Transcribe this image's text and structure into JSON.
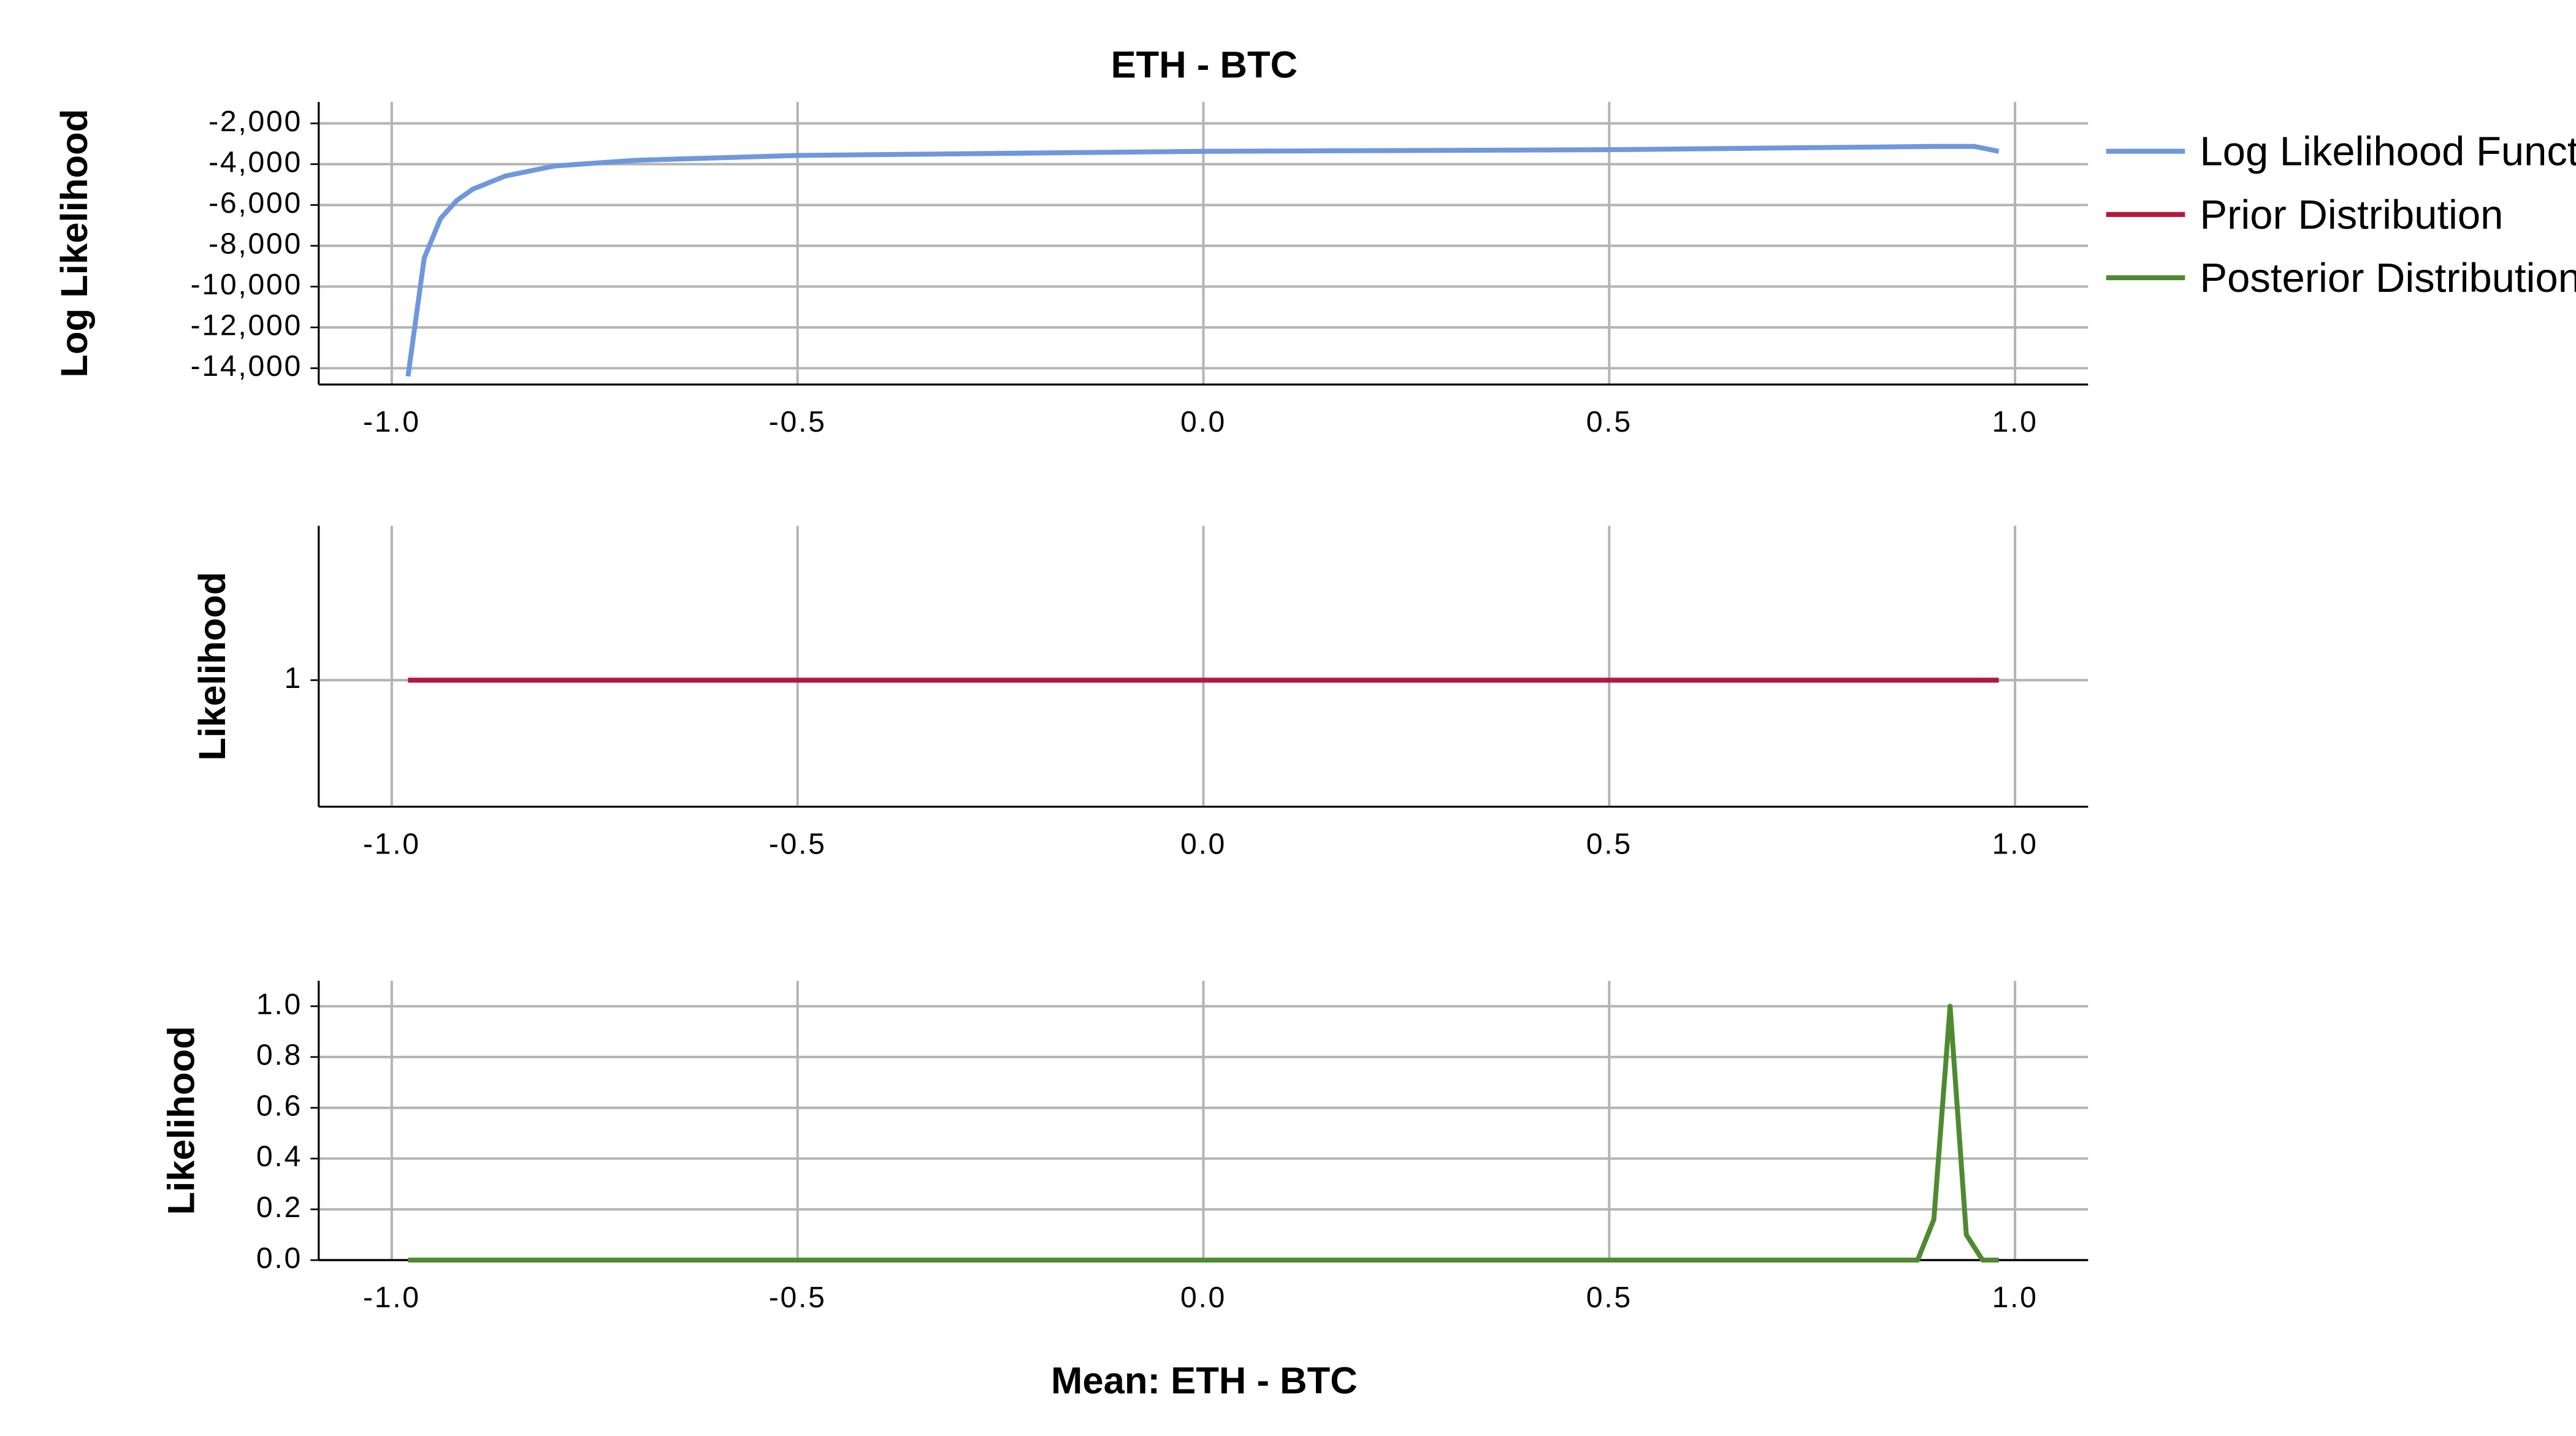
{
  "chart_data": [
    {
      "type": "line",
      "title": "ETH - BTC",
      "ylabel": "Log Likelihood",
      "x": [
        -0.98,
        -0.96,
        -0.94,
        -0.92,
        -0.9,
        -0.86,
        -0.8,
        -0.7,
        -0.5,
        0,
        0.5,
        0.9,
        0.95,
        0.98
      ],
      "series": [
        {
          "name": "Log Likelihood Function",
          "color": "#6f98dc",
          "values": [
            -14400,
            -8600,
            -6670,
            -5780,
            -5220,
            -4580,
            -4090,
            -3810,
            -3570,
            -3370,
            -3290,
            -3130,
            -3130,
            -3370
          ]
        }
      ],
      "xlim": [
        -1.09,
        1.09
      ],
      "xticks": [
        {
          "value": -1,
          "label": "-1.0"
        },
        -0.5,
        {
          "value": 0,
          "label": "0.0"
        },
        0.5,
        {
          "value": 1,
          "label": "1.0"
        }
      ],
      "ylim": [
        -14800,
        -950
      ],
      "yticks": [
        {
          "value": -2000,
          "label": "-2,000"
        },
        {
          "value": -4000,
          "label": "-4,000"
        },
        {
          "value": -6000,
          "label": "-6,000"
        },
        {
          "value": -8000,
          "label": "-8,000"
        },
        {
          "value": -10000,
          "label": "-10,000"
        },
        {
          "value": -12000,
          "label": "-12,000"
        },
        {
          "value": -14000,
          "label": "-14,000"
        }
      ],
      "grid": true
    },
    {
      "type": "line",
      "ylabel": "Likelihood",
      "x": [
        -0.98,
        0.98
      ],
      "series": [
        {
          "name": "Prior Distribution",
          "color": "#b5173f",
          "values": [
            1,
            1
          ]
        }
      ],
      "xlim": [
        -1.09,
        1.09
      ],
      "xticks": [
        {
          "value": -1,
          "label": "-1.0"
        },
        -0.5,
        {
          "value": 0,
          "label": "0.0"
        },
        0.5,
        {
          "value": 1,
          "label": "1.0"
        }
      ],
      "ylim": [
        0,
        2.22
      ],
      "yticks": [
        1
      ],
      "grid": true
    },
    {
      "type": "line",
      "ylabel": "Likelihood",
      "xlabel": "Mean: ETH - BTC",
      "x": [
        -0.98,
        0.88,
        0.9,
        0.92,
        0.94,
        0.96,
        0.98
      ],
      "series": [
        {
          "name": "Posterior Distribution",
          "color": "#4e8a31",
          "values": [
            0,
            0,
            0.16,
            1,
            0.1,
            0,
            0
          ]
        }
      ],
      "xlim": [
        -1.09,
        1.09
      ],
      "xticks": [
        {
          "value": -1,
          "label": "-1.0"
        },
        -0.5,
        {
          "value": 0,
          "label": "0.0"
        },
        0.5,
        {
          "value": 1,
          "label": "1.0"
        }
      ],
      "ylim": [
        0,
        1.1
      ],
      "yticks": [
        {
          "value": 0,
          "label": "0.0"
        },
        0.2,
        0.4,
        0.6,
        0.8,
        {
          "value": 1,
          "label": "1.0"
        }
      ],
      "grid": true
    }
  ]
}
